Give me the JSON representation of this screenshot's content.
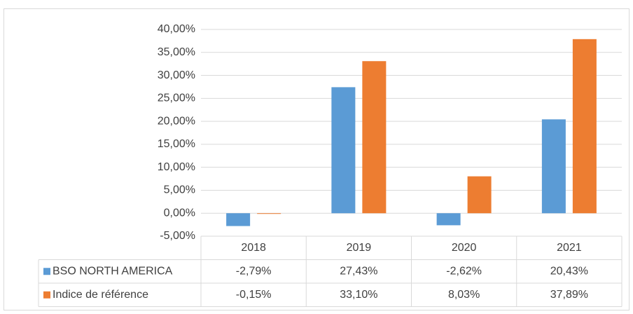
{
  "chart_data": {
    "type": "bar",
    "categories": [
      "2018",
      "2019",
      "2020",
      "2021"
    ],
    "series": [
      {
        "name": "BSO NORTH AMERICA",
        "color": "#5b9bd5",
        "values": [
          -2.79,
          27.43,
          -2.62,
          20.43
        ],
        "value_labels": [
          "-2,79%",
          "27,43%",
          "-2,62%",
          "20,43%"
        ]
      },
      {
        "name": "Indice de référence",
        "color": "#ed7d31",
        "values": [
          -0.15,
          33.1,
          8.03,
          37.89
        ],
        "value_labels": [
          "-0,15%",
          "33,10%",
          "8,03%",
          "37,89%"
        ]
      }
    ],
    "ylim": [
      -5,
      40
    ],
    "yticks": [
      {
        "value": -5,
        "label": "-5,00%"
      },
      {
        "value": 0,
        "label": "0,00%"
      },
      {
        "value": 5,
        "label": "5,00%"
      },
      {
        "value": 10,
        "label": "10,00%"
      },
      {
        "value": 15,
        "label": "15,00%"
      },
      {
        "value": 20,
        "label": "20,00%"
      },
      {
        "value": 25,
        "label": "25,00%"
      },
      {
        "value": 30,
        "label": "30,00%"
      },
      {
        "value": 35,
        "label": "35,00%"
      },
      {
        "value": 40,
        "label": "40,00%"
      }
    ],
    "grid": true,
    "data_table": true
  }
}
